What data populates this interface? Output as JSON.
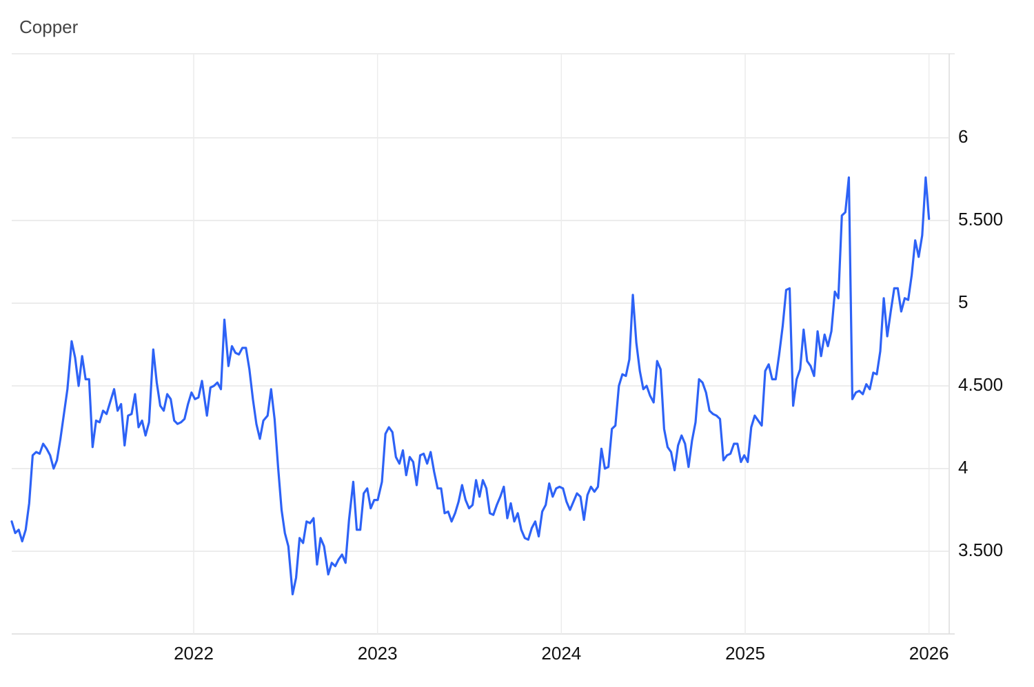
{
  "chart_data": {
    "type": "line",
    "title": "Copper",
    "xlim": [
      2021.01,
      2026.11
    ],
    "xticks": [
      2022,
      2023,
      2024,
      2025,
      2026
    ],
    "ylim": [
      3,
      6.5
    ],
    "yticks": [
      {
        "value": 3.5,
        "label": "3.500"
      },
      4,
      {
        "value": 4.5,
        "label": "4.500"
      },
      5,
      {
        "value": 5.5,
        "label": "5.500"
      },
      6
    ],
    "grid": true,
    "series": [
      {
        "color": "#2d62f6",
        "x": [
          2021.01,
          2021.029,
          2021.048,
          2021.067,
          2021.086,
          2021.105,
          2021.124,
          2021.143,
          2021.162,
          2021.181,
          2021.2,
          2021.219,
          2021.238,
          2021.256,
          2021.275,
          2021.294,
          2021.313,
          2021.336,
          2021.355,
          2021.374,
          2021.393,
          2021.412,
          2021.431,
          2021.45,
          2021.469,
          2021.488,
          2021.507,
          2021.526,
          2021.545,
          2021.567,
          2021.586,
          2021.605,
          2021.624,
          2021.643,
          2021.662,
          2021.681,
          2021.7,
          2021.719,
          2021.738,
          2021.757,
          2021.78,
          2021.799,
          2021.818,
          2021.837,
          2021.856,
          2021.875,
          2021.894,
          2021.912,
          2021.931,
          2021.95,
          2021.969,
          2021.988,
          2022.007,
          2022.026,
          2022.045,
          2022.072,
          2022.091,
          2022.11,
          2022.129,
          2022.148,
          2022.167,
          2022.189,
          2022.208,
          2022.227,
          2022.246,
          2022.265,
          2022.284,
          2022.303,
          2022.322,
          2022.341,
          2022.36,
          2022.379,
          2022.402,
          2022.421,
          2022.44,
          2022.459,
          2022.478,
          2022.496,
          2022.515,
          2022.538,
          2022.557,
          2022.576,
          2022.595,
          2022.614,
          2022.633,
          2022.652,
          2022.671,
          2022.69,
          2022.709,
          2022.732,
          2022.751,
          2022.77,
          2022.788,
          2022.807,
          2022.826,
          2022.845,
          2022.868,
          2022.887,
          2022.906,
          2022.925,
          2022.944,
          2022.963,
          2022.982,
          2023.001,
          2023.024,
          2023.043,
          2023.062,
          2023.081,
          2023.1,
          2023.119,
          2023.138,
          2023.156,
          2023.175,
          2023.194,
          2023.213,
          2023.232,
          2023.251,
          2023.27,
          2023.289,
          2023.308,
          2023.327,
          2023.346,
          2023.365,
          2023.384,
          2023.403,
          2023.422,
          2023.441,
          2023.46,
          2023.479,
          2023.498,
          2023.517,
          2023.536,
          2023.555,
          2023.573,
          2023.592,
          2023.611,
          2023.63,
          2023.649,
          2023.668,
          2023.687,
          2023.706,
          2023.725,
          2023.744,
          2023.763,
          2023.782,
          2023.801,
          2023.82,
          2023.839,
          2023.858,
          2023.877,
          2023.896,
          2023.915,
          2023.934,
          2023.953,
          2023.972,
          2023.99,
          2024.009,
          2024.028,
          2024.047,
          2024.066,
          2024.085,
          2024.104,
          2024.123,
          2024.142,
          2024.161,
          2024.18,
          2024.199,
          2024.218,
          2024.237,
          2024.256,
          2024.275,
          2024.294,
          2024.313,
          2024.332,
          2024.351,
          2024.37,
          2024.389,
          2024.408,
          2024.427,
          2024.446,
          2024.464,
          2024.483,
          2024.502,
          2024.521,
          2024.54,
          2024.559,
          2024.578,
          2024.597,
          2024.616,
          2024.635,
          2024.654,
          2024.673,
          2024.692,
          2024.711,
          2024.73,
          2024.749,
          2024.768,
          2024.787,
          2024.806,
          2024.825,
          2024.844,
          2024.863,
          2024.882,
          2024.901,
          2024.92,
          2024.939,
          2024.958,
          2024.977,
          2024.995,
          2025.014,
          2025.033,
          2025.052,
          2025.071,
          2025.09,
          2025.109,
          2025.128,
          2025.147,
          2025.166,
          2025.185,
          2025.204,
          2025.223,
          2025.242,
          2025.261,
          2025.28,
          2025.299,
          2025.318,
          2025.337,
          2025.356,
          2025.375,
          2025.394,
          2025.413,
          2025.432,
          2025.45,
          2025.469,
          2025.488,
          2025.507,
          2025.526,
          2025.545,
          2025.564,
          2025.583,
          2025.602,
          2025.621,
          2025.64,
          2025.659,
          2025.678,
          2025.697,
          2025.716,
          2025.735,
          2025.754,
          2025.773,
          2025.792,
          2025.811,
          2025.83,
          2025.849,
          2025.868,
          2025.887,
          2025.906,
          2025.925,
          2025.944,
          2025.963,
          2025.982,
          2026.0
        ],
        "values": [
          3.68,
          3.61,
          3.63,
          3.56,
          3.63,
          3.79,
          4.08,
          4.1,
          4.09,
          4.15,
          4.12,
          4.08,
          4.0,
          4.05,
          4.18,
          4.33,
          4.48,
          4.77,
          4.67,
          4.5,
          4.68,
          4.54,
          4.54,
          4.13,
          4.29,
          4.28,
          4.35,
          4.33,
          4.4,
          4.48,
          4.35,
          4.39,
          4.14,
          4.32,
          4.33,
          4.45,
          4.25,
          4.29,
          4.2,
          4.28,
          4.72,
          4.52,
          4.38,
          4.35,
          4.45,
          4.42,
          4.29,
          4.27,
          4.28,
          4.3,
          4.39,
          4.46,
          4.42,
          4.43,
          4.53,
          4.32,
          4.49,
          4.5,
          4.52,
          4.48,
          4.9,
          4.62,
          4.74,
          4.7,
          4.69,
          4.73,
          4.73,
          4.6,
          4.42,
          4.27,
          4.18,
          4.29,
          4.32,
          4.48,
          4.3,
          4.01,
          3.75,
          3.61,
          3.53,
          3.24,
          3.34,
          3.58,
          3.55,
          3.68,
          3.67,
          3.7,
          3.42,
          3.58,
          3.53,
          3.36,
          3.43,
          3.41,
          3.45,
          3.48,
          3.43,
          3.69,
          3.92,
          3.63,
          3.63,
          3.85,
          3.88,
          3.76,
          3.81,
          3.81,
          3.92,
          4.21,
          4.25,
          4.22,
          4.07,
          4.03,
          4.11,
          3.96,
          4.07,
          4.04,
          3.9,
          4.08,
          4.09,
          4.03,
          4.1,
          3.98,
          3.88,
          3.88,
          3.73,
          3.74,
          3.68,
          3.73,
          3.8,
          3.9,
          3.81,
          3.76,
          3.78,
          3.93,
          3.83,
          3.93,
          3.88,
          3.73,
          3.72,
          3.78,
          3.83,
          3.89,
          3.7,
          3.79,
          3.68,
          3.73,
          3.63,
          3.58,
          3.57,
          3.64,
          3.68,
          3.59,
          3.74,
          3.78,
          3.91,
          3.83,
          3.88,
          3.89,
          3.88,
          3.8,
          3.75,
          3.8,
          3.85,
          3.83,
          3.69,
          3.84,
          3.89,
          3.86,
          3.89,
          4.12,
          4.0,
          4.01,
          4.24,
          4.26,
          4.5,
          4.57,
          4.56,
          4.66,
          5.05,
          4.76,
          4.59,
          4.48,
          4.5,
          4.44,
          4.4,
          4.65,
          4.6,
          4.24,
          4.13,
          4.1,
          3.99,
          4.14,
          4.2,
          4.15,
          4.01,
          4.17,
          4.28,
          4.54,
          4.52,
          4.46,
          4.35,
          4.33,
          4.32,
          4.3,
          4.05,
          4.08,
          4.09,
          4.15,
          4.15,
          4.04,
          4.08,
          4.04,
          4.25,
          4.32,
          4.29,
          4.26,
          4.59,
          4.63,
          4.54,
          4.54,
          4.69,
          4.86,
          5.08,
          5.09,
          4.38,
          4.54,
          4.6,
          4.84,
          4.65,
          4.62,
          4.56,
          4.83,
          4.68,
          4.81,
          4.74,
          4.83,
          5.07,
          5.03,
          5.53,
          5.55,
          5.76,
          4.42,
          4.46,
          4.47,
          4.45,
          4.51,
          4.48,
          4.58,
          4.57,
          4.71,
          5.03,
          4.8,
          4.95,
          5.09,
          5.09,
          4.95,
          5.03,
          5.02,
          5.17,
          5.38,
          5.28,
          5.41,
          5.76,
          5.51
        ]
      }
    ]
  }
}
